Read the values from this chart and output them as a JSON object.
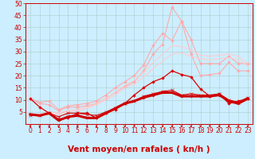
{
  "background_color": "#cceeff",
  "grid_color": "#aacccc",
  "x_ticks": [
    0,
    1,
    2,
    3,
    4,
    5,
    6,
    7,
    8,
    9,
    10,
    11,
    12,
    13,
    14,
    15,
    16,
    17,
    18,
    19,
    20,
    21,
    22,
    23
  ],
  "xlim": [
    -0.5,
    23.5
  ],
  "ylim": [
    0,
    50
  ],
  "y_ticks": [
    5,
    10,
    15,
    20,
    25,
    30,
    35,
    40,
    45,
    50
  ],
  "xlabel": "Vent moyen/en rafales ( kn/h )",
  "lines": [
    {
      "y": [
        10.5,
        8.5,
        8.0,
        5.5,
        7.0,
        7.0,
        7.5,
        8.5,
        10.5,
        13.0,
        15.5,
        17.5,
        22.0,
        29.0,
        33.0,
        48.5,
        42.5,
        29.0,
        20.0,
        20.5,
        21.0,
        25.5,
        22.0,
        22.0
      ],
      "color": "#ffaaaa",
      "linewidth": 0.8,
      "marker": "D",
      "markersize": 1.8,
      "zorder": 2
    },
    {
      "y": [
        10.5,
        9.0,
        9.5,
        6.0,
        7.5,
        8.0,
        8.5,
        9.5,
        12.0,
        15.0,
        17.5,
        20.0,
        24.5,
        32.5,
        37.5,
        34.5,
        42.5,
        35.0,
        25.0,
        25.0,
        25.0,
        28.0,
        25.0,
        25.0
      ],
      "color": "#ffaaaa",
      "linewidth": 0.8,
      "marker": "D",
      "markersize": 1.8,
      "zorder": 2
    },
    {
      "y": [
        4.0,
        4.0,
        5.0,
        4.5,
        5.5,
        6.0,
        7.0,
        8.5,
        10.5,
        13.0,
        16.0,
        18.0,
        21.5,
        25.5,
        29.0,
        32.5,
        32.0,
        30.5,
        28.5,
        28.0,
        28.5,
        29.0,
        28.0,
        25.0
      ],
      "color": "#ffcccc",
      "linewidth": 0.8,
      "marker": null,
      "markersize": 0,
      "zorder": 2
    },
    {
      "y": [
        3.5,
        3.5,
        4.5,
        4.0,
        5.0,
        5.5,
        6.5,
        8.0,
        10.0,
        12.0,
        15.0,
        16.5,
        19.5,
        23.0,
        26.0,
        29.0,
        29.5,
        28.0,
        27.0,
        26.5,
        27.0,
        27.5,
        26.5,
        24.0
      ],
      "color": "#ffcccc",
      "linewidth": 0.8,
      "marker": null,
      "markersize": 0,
      "zorder": 2
    },
    {
      "y": [
        10.5,
        7.0,
        4.5,
        2.0,
        2.5,
        4.5,
        4.5,
        2.5,
        4.5,
        6.0,
        8.5,
        12.0,
        15.0,
        17.5,
        19.0,
        22.0,
        20.5,
        19.5,
        14.5,
        11.5,
        12.5,
        8.5,
        9.5,
        10.5
      ],
      "color": "#dd0000",
      "linewidth": 0.9,
      "marker": "D",
      "markersize": 1.8,
      "zorder": 4
    },
    {
      "y": [
        4.0,
        3.5,
        4.5,
        1.5,
        3.0,
        3.5,
        2.5,
        2.5,
        4.5,
        6.5,
        8.5,
        9.5,
        11.0,
        12.0,
        13.0,
        13.0,
        11.5,
        11.5,
        11.5,
        11.5,
        12.0,
        9.5,
        8.5,
        10.5
      ],
      "color": "#cc0000",
      "linewidth": 2.2,
      "marker": "D",
      "markersize": 1.5,
      "zorder": 5
    },
    {
      "y": [
        3.5,
        3.5,
        4.5,
        3.0,
        4.5,
        4.5,
        4.0,
        3.5,
        5.0,
        6.5,
        8.5,
        9.5,
        11.5,
        12.5,
        13.5,
        14.0,
        12.0,
        12.5,
        12.0,
        12.0,
        12.5,
        10.0,
        9.0,
        11.0
      ],
      "color": "#dd0000",
      "linewidth": 0.8,
      "marker": "x",
      "markersize": 2.5,
      "zorder": 3
    }
  ],
  "tick_fontsize": 5.5,
  "xlabel_fontsize": 7.5,
  "tick_color": "#cc0000",
  "spine_color": "#cc0000",
  "arrow_color": "#cc0000"
}
